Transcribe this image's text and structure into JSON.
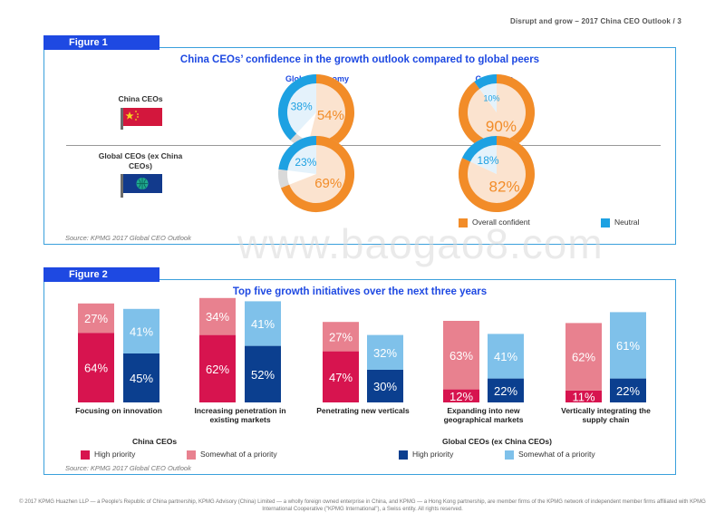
{
  "header": "Disrupt and grow – 2017 China CEO Outlook / 3",
  "watermark": "www.baogao8.com",
  "footer": "© 2017 KPMG Huazhen LLP — a People's Republic of China partnership, KPMG Advisory (China) Limited — a wholly foreign owned enterprise in China, and KPMG — a Hong Kong partnership, are member firms of the KPMG network of independent member firms affiliated with KPMG International Cooperative (\"KPMG International\"), a Swiss entity. All rights reserved.",
  "figure1": {
    "tag": "Figure 1",
    "source": "Source: KPMG 2017 Global CEO Outlook",
    "legend": [
      {
        "label": "Overall confident",
        "color": "#f28c28"
      },
      {
        "label": "Neutral",
        "color": "#1da1e2"
      }
    ],
    "row_labels": [
      "China CEOs",
      "Global CEOs (ex China CEOs)"
    ],
    "col_labels": [
      "Global economy",
      "Company"
    ]
  },
  "figure2": {
    "tag": "Figure 2",
    "source": "Source: KPMG 2017 Global CEO Outlook",
    "group_titles": [
      "China CEOs",
      "Global CEOs (ex China CEOs)"
    ],
    "legend": [
      {
        "label": "High priority",
        "color": "#d7144f"
      },
      {
        "label": "Somewhat of a priority",
        "color": "#e8818f"
      },
      {
        "label": "High priority",
        "color": "#0b3f8f"
      },
      {
        "label": "Somewhat of a priority",
        "color": "#7fc1ea"
      }
    ]
  },
  "chart_data": [
    {
      "type": "pie",
      "title": "China CEOs’ confidence in the growth outlook compared to global peers",
      "rows": [
        "China CEOs",
        "Global CEOs (ex China CEOs)"
      ],
      "columns": [
        "Global economy",
        "Company"
      ],
      "series": [
        {
          "name": "Overall confident",
          "color": "#f28c28",
          "values": [
            [
              54,
              90
            ],
            [
              69,
              82
            ]
          ]
        },
        {
          "name": "Neutral",
          "color": "#1da1e2",
          "values": [
            [
              38,
              10
            ],
            [
              23,
              18
            ]
          ]
        }
      ]
    },
    {
      "type": "bar",
      "title": "Top five growth initiatives over the next three years",
      "categories": [
        "Focusing on innovation",
        "Increasing penetration in existing markets",
        "Penetrating new verticals",
        "Expanding into new geographical markets",
        "Vertically integrating the supply chain"
      ],
      "groups": [
        {
          "name": "China CEOs",
          "series": [
            {
              "name": "High priority",
              "color": "#d7144f",
              "values": [
                64,
                62,
                47,
                12,
                11
              ]
            },
            {
              "name": "Somewhat of a priority",
              "color": "#e8818f",
              "values": [
                27,
                34,
                27,
                63,
                62
              ]
            }
          ]
        },
        {
          "name": "Global CEOs (ex China CEOs)",
          "series": [
            {
              "name": "High priority",
              "color": "#0b3f8f",
              "values": [
                45,
                52,
                30,
                22,
                22
              ]
            },
            {
              "name": "Somewhat of a priority",
              "color": "#7fc1ea",
              "values": [
                41,
                41,
                32,
                41,
                61
              ]
            }
          ]
        }
      ],
      "unit": "%"
    }
  ]
}
